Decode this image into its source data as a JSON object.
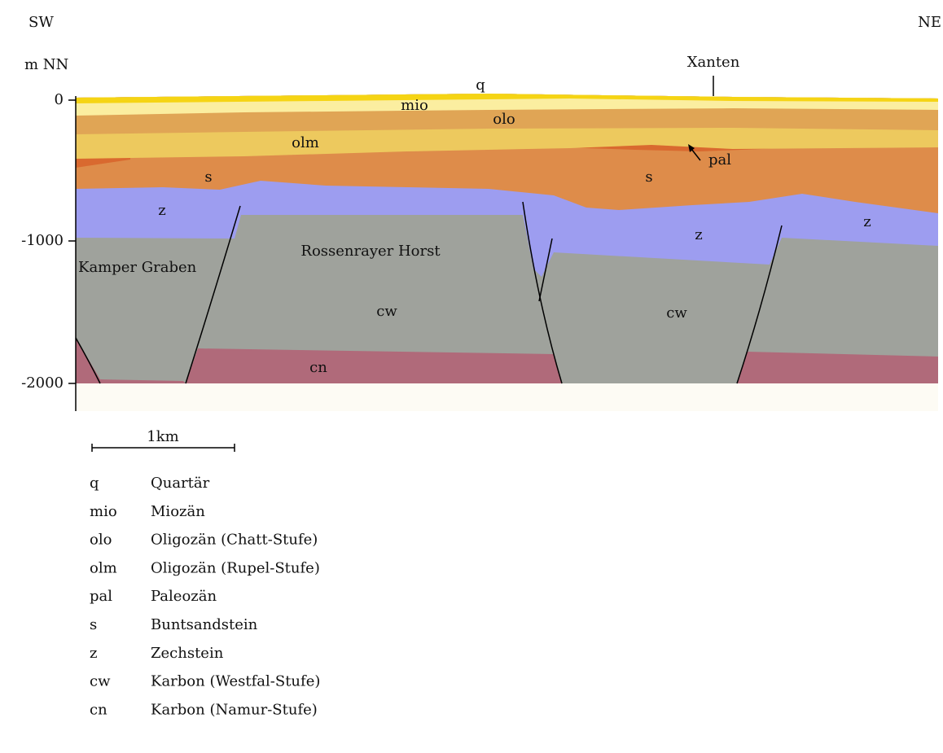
{
  "directions": {
    "left": "SW",
    "right": "NE"
  },
  "axis": {
    "label": "m NN",
    "ticks": [
      "0",
      "-1000",
      "-2000"
    ]
  },
  "location": "Xanten",
  "section_labels": {
    "q": "q",
    "mio": "mio",
    "olo": "olo",
    "olm": "olm",
    "pal": "pal",
    "s_left": "s",
    "s_right": "s",
    "z_left": "z",
    "z_middle": "z",
    "z_right": "z",
    "cw_left": "cw",
    "cw_right": "cw",
    "cn": "cn",
    "graben": "Kamper Graben",
    "horst": "Rossenrayer Horst"
  },
  "scale": "1km",
  "legend": [
    {
      "code": "q",
      "name": "Quartär"
    },
    {
      "code": "mio",
      "name": "Miozän"
    },
    {
      "code": "olo",
      "name": "Oligozän (Chatt-Stufe)"
    },
    {
      "code": "olm",
      "name": "Oligozän (Rupel-Stufe)"
    },
    {
      "code": "pal",
      "name": "Paleozän"
    },
    {
      "code": "s",
      "name": "Buntsandstein"
    },
    {
      "code": "z",
      "name": "Zechstein"
    },
    {
      "code": "cw",
      "name": "Karbon (Westfal-Stufe)"
    },
    {
      "code": "cn",
      "name": "Karbon (Namur-Stufe)"
    }
  ]
}
